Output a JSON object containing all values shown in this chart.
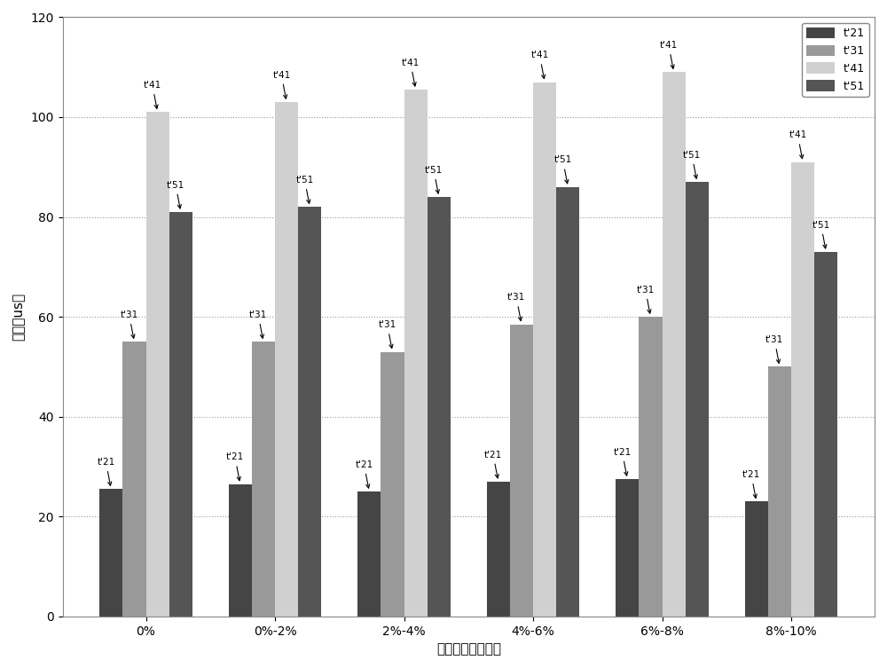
{
  "categories": [
    "0%",
    "0%-2%",
    "2%-4%",
    "4%-6%",
    "6%-8%",
    "8%-10%"
  ],
  "series": {
    "tau21": [
      25.5,
      26.5,
      25.0,
      27.0,
      27.5,
      23.0
    ],
    "tau31": [
      55.0,
      55.0,
      53.0,
      58.5,
      60.0,
      50.0
    ],
    "tau41": [
      101.0,
      103.0,
      105.5,
      107.0,
      109.0,
      91.0
    ],
    "tau51": [
      81.0,
      82.0,
      84.0,
      86.0,
      87.0,
      73.0
    ]
  },
  "colors": {
    "tau21": "#454545",
    "tau31": "#999999",
    "tau41": "#d0d0d0",
    "tau51": "#555555"
  },
  "ann_labels": {
    "tau21": "t'21",
    "tau31": "t'31",
    "tau41": "t'41",
    "tau51": "t'51"
  },
  "legend_labels": {
    "tau21": "t'21",
    "tau31": "t'31",
    "tau41": "t'41",
    "tau51": "t'51"
  },
  "ylabel": "时间（us）",
  "xlabel": "不同时间游走范围",
  "ylim": [
    0,
    120
  ],
  "yticks": [
    0,
    20,
    40,
    60,
    80,
    100,
    120
  ],
  "bar_width": 0.18,
  "background_color": "#ffffff",
  "grid_color": "#999999",
  "annotation_fontsize": 7.5,
  "tick_fontsize": 10,
  "label_fontsize": 11
}
